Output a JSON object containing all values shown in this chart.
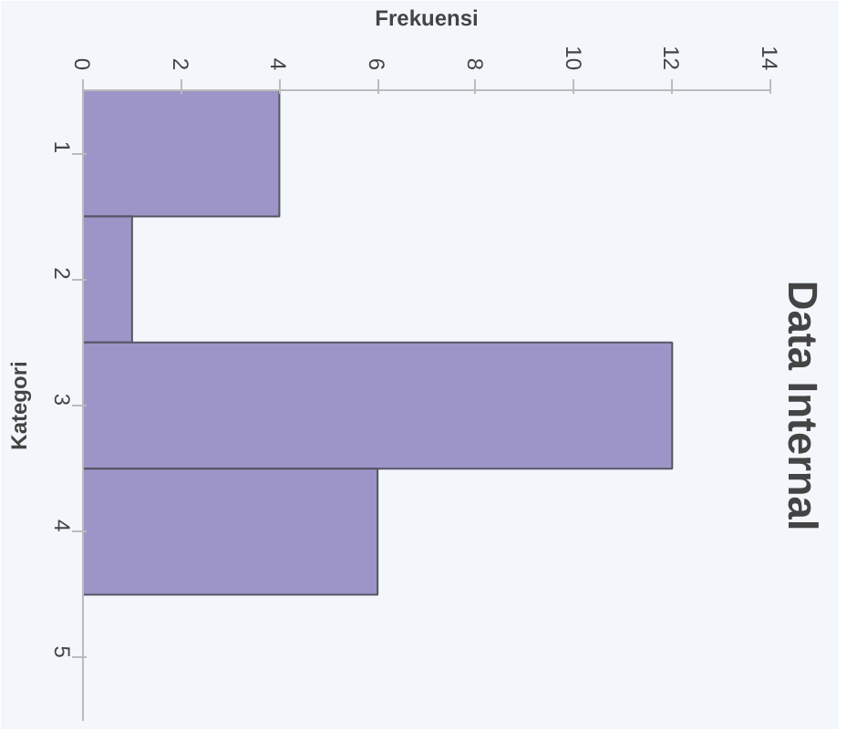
{
  "chart_data": {
    "type": "bar",
    "orientation": "horizontal",
    "title": "Data Internal",
    "xlabel": "Frekuensi",
    "ylabel": "Kategori",
    "categories": [
      "1",
      "2",
      "3",
      "4",
      "5"
    ],
    "values": [
      4,
      1,
      12,
      6,
      0
    ],
    "color": "#9d95c8",
    "xlim": [
      0,
      14
    ],
    "xticks": [
      0,
      2,
      4,
      6,
      8,
      10,
      12,
      14
    ],
    "grid": false
  }
}
